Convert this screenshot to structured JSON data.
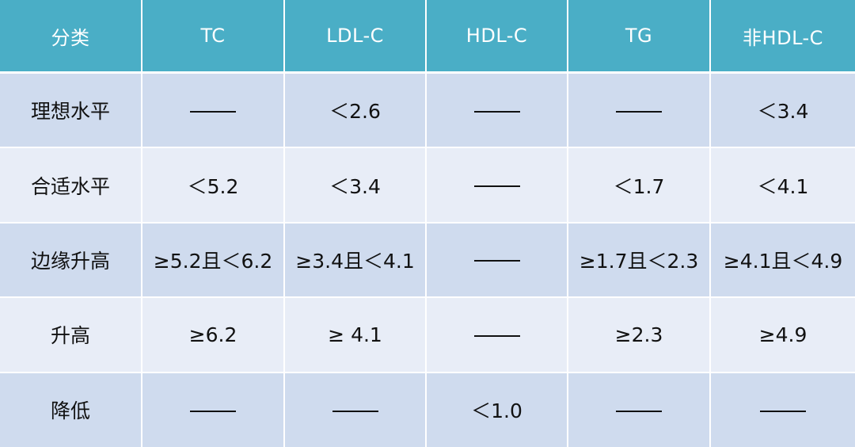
{
  "colors": {
    "header_bg": "#4aaec6",
    "header_text": "#ffffff",
    "row_odd_bg": "#cfdbee",
    "row_even_bg": "#e8edf7",
    "dash_icon": "em-dash line"
  },
  "table": {
    "headers": [
      "分类",
      "TC",
      "LDL-C",
      "HDL-C",
      "TG",
      "非HDL-C"
    ],
    "rows": [
      {
        "label": "理想水平",
        "cells": [
          "——",
          "＜2.6",
          "——",
          "——",
          "＜3.4"
        ]
      },
      {
        "label": "合适水平",
        "cells": [
          "＜5.2",
          "＜3.4",
          "——",
          "＜1.7",
          "＜4.1"
        ]
      },
      {
        "label": "边缘升高",
        "cells": [
          "≥5.2且＜6.2",
          "≥3.4且＜4.1",
          "——",
          "≥1.7且＜2.3",
          "≥4.1且＜4.9"
        ]
      },
      {
        "label": "升高",
        "cells": [
          "≥6.2",
          "≥ 4.1",
          "——",
          "≥2.3",
          "≥4.9"
        ]
      },
      {
        "label": "降低",
        "cells": [
          "——",
          "——",
          "＜1.0",
          "——",
          "——"
        ]
      }
    ]
  }
}
